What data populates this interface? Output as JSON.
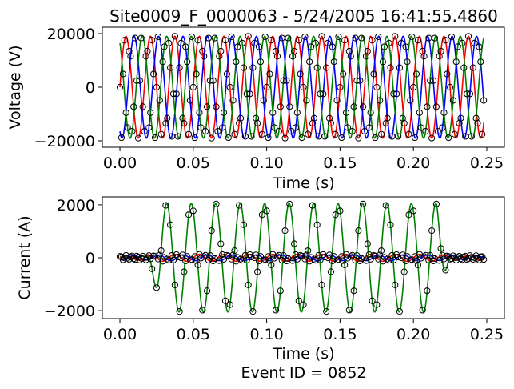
{
  "title": "Site0009_F_0000063 - 5/24/2005 16:41:55.4860",
  "footer": "Event ID = 0852",
  "chart_data": [
    {
      "type": "line",
      "name": "voltage",
      "xlabel": "Time (s)",
      "ylabel": "Voltage (V)",
      "xlim": [
        -0.012,
        0.262
      ],
      "ylim": [
        -22400,
        22400
      ],
      "xticks": [
        0.0,
        0.05,
        0.1,
        0.15,
        0.2,
        0.25
      ],
      "xtick_labels": [
        "0.00",
        "0.05",
        "0.10",
        "0.15",
        "0.20",
        "0.25"
      ],
      "yticks": [
        -20000,
        0,
        20000
      ],
      "ytick_labels": [
        "−20000",
        "0",
        "20000"
      ],
      "t_start": 0.0,
      "t_end": 0.248,
      "frequency_hz": 60,
      "series": [
        {
          "color": "#ff0000",
          "amplitude": 19000,
          "phase_deg": 0
        },
        {
          "color": "#0000ff",
          "amplitude": 19000,
          "phase_deg": -120
        },
        {
          "color": "#008000",
          "amplitude": 19000,
          "phase_deg": 120
        }
      ],
      "markers": {
        "style": "open-circle",
        "color": "#000000"
      }
    },
    {
      "type": "line",
      "name": "current",
      "xlabel": "Time (s)",
      "ylabel": "Current (A)",
      "xlim": [
        -0.012,
        0.262
      ],
      "ylim": [
        -2300,
        2300
      ],
      "xticks": [
        0.0,
        0.05,
        0.1,
        0.15,
        0.2,
        0.25
      ],
      "xtick_labels": [
        "0.00",
        "0.05",
        "0.10",
        "0.15",
        "0.20",
        "0.25"
      ],
      "yticks": [
        -2000,
        0,
        2000
      ],
      "ytick_labels": [
        "−2000",
        "0",
        "2000"
      ],
      "t_start": 0.0,
      "t_end": 0.248,
      "frequency_hz": 60,
      "fault_start_s": 0.024,
      "fault_end_s": 0.22,
      "series": [
        {
          "color": "#008000",
          "normal_amplitude": 60,
          "fault_amplitude": 2050,
          "phase_deg": 120
        },
        {
          "color": "#ff0000",
          "normal_amplitude": 90,
          "fault_amplitude": 130,
          "phase_deg": 0
        },
        {
          "color": "#0000ff",
          "normal_amplitude": 80,
          "fault_amplitude": 110,
          "phase_deg": -120
        }
      ],
      "markers": {
        "style": "open-circle",
        "color": "#000000"
      }
    }
  ]
}
